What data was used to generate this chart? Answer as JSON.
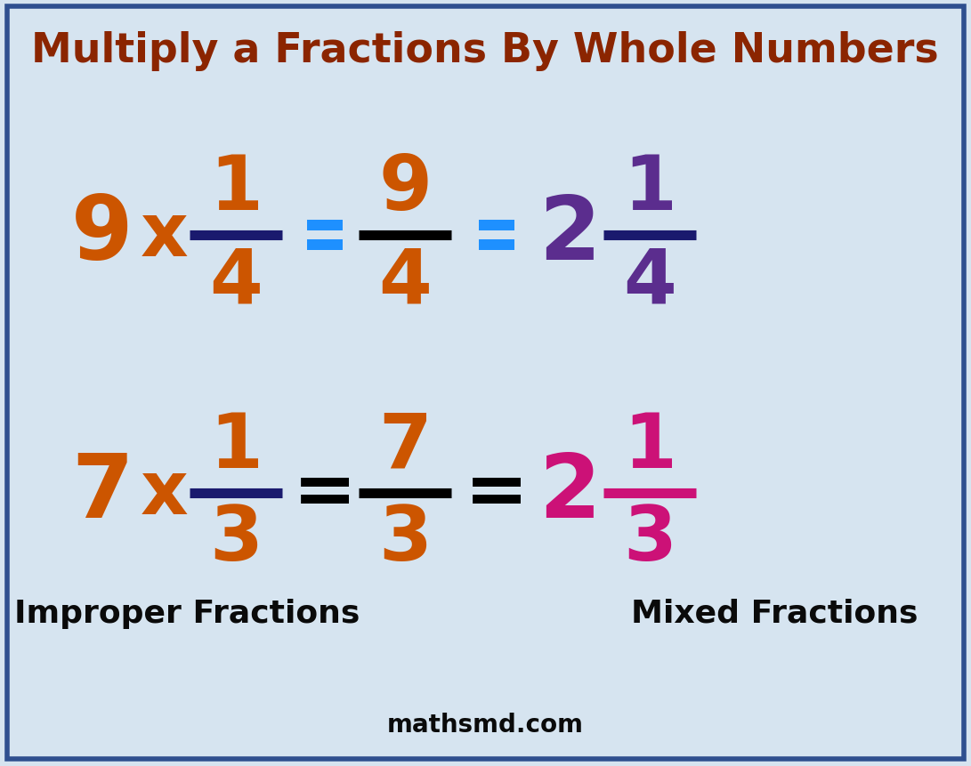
{
  "title": "Multiply a Fractions By Whole Numbers",
  "title_color": "#8B2500",
  "background_color": "#D6E4F0",
  "border_color": "#2F4F8F",
  "website": "mathsmd.com",
  "website_color": "#0a0a0a",
  "orange_color": "#CC5500",
  "purple_color": "#5B2D8E",
  "magenta_color": "#CC1177",
  "dark_navy": "#1a1a6e",
  "black": "#000000",
  "blue_eq": "#1e90ff",
  "row1": {
    "whole1": "9",
    "times": "x",
    "frac1_num": "1",
    "frac1_den": "4",
    "frac1_line_color": "#1a1a6e",
    "frac2_num": "9",
    "frac2_den": "4",
    "frac2_line_color": "#000000",
    "whole2": "2",
    "frac3_num": "1",
    "frac3_den": "4",
    "frac3_line_color": "#1a1a6e",
    "num_color": "#CC5500",
    "mixed_color": "#5B2D8E",
    "eq_color": "#1e90ff"
  },
  "row2": {
    "whole1": "7",
    "times": "x",
    "frac1_num": "1",
    "frac1_den": "3",
    "frac1_line_color": "#1a1a6e",
    "frac2_num": "7",
    "frac2_den": "3",
    "frac2_line_color": "#000000",
    "whole2": "2",
    "frac3_num": "1",
    "frac3_den": "3",
    "frac3_line_color": "#CC1177",
    "num_color": "#CC5500",
    "mixed_color": "#CC1177",
    "eq_color": "#000000"
  },
  "label_improper": "Improper Fractions",
  "label_improper_color": "#0a0a0a",
  "label_mixed": "Mixed Fractions",
  "label_mixed_color": "#0a0a0a",
  "figsize": [
    10.91,
    8.62
  ],
  "dpi": 100
}
